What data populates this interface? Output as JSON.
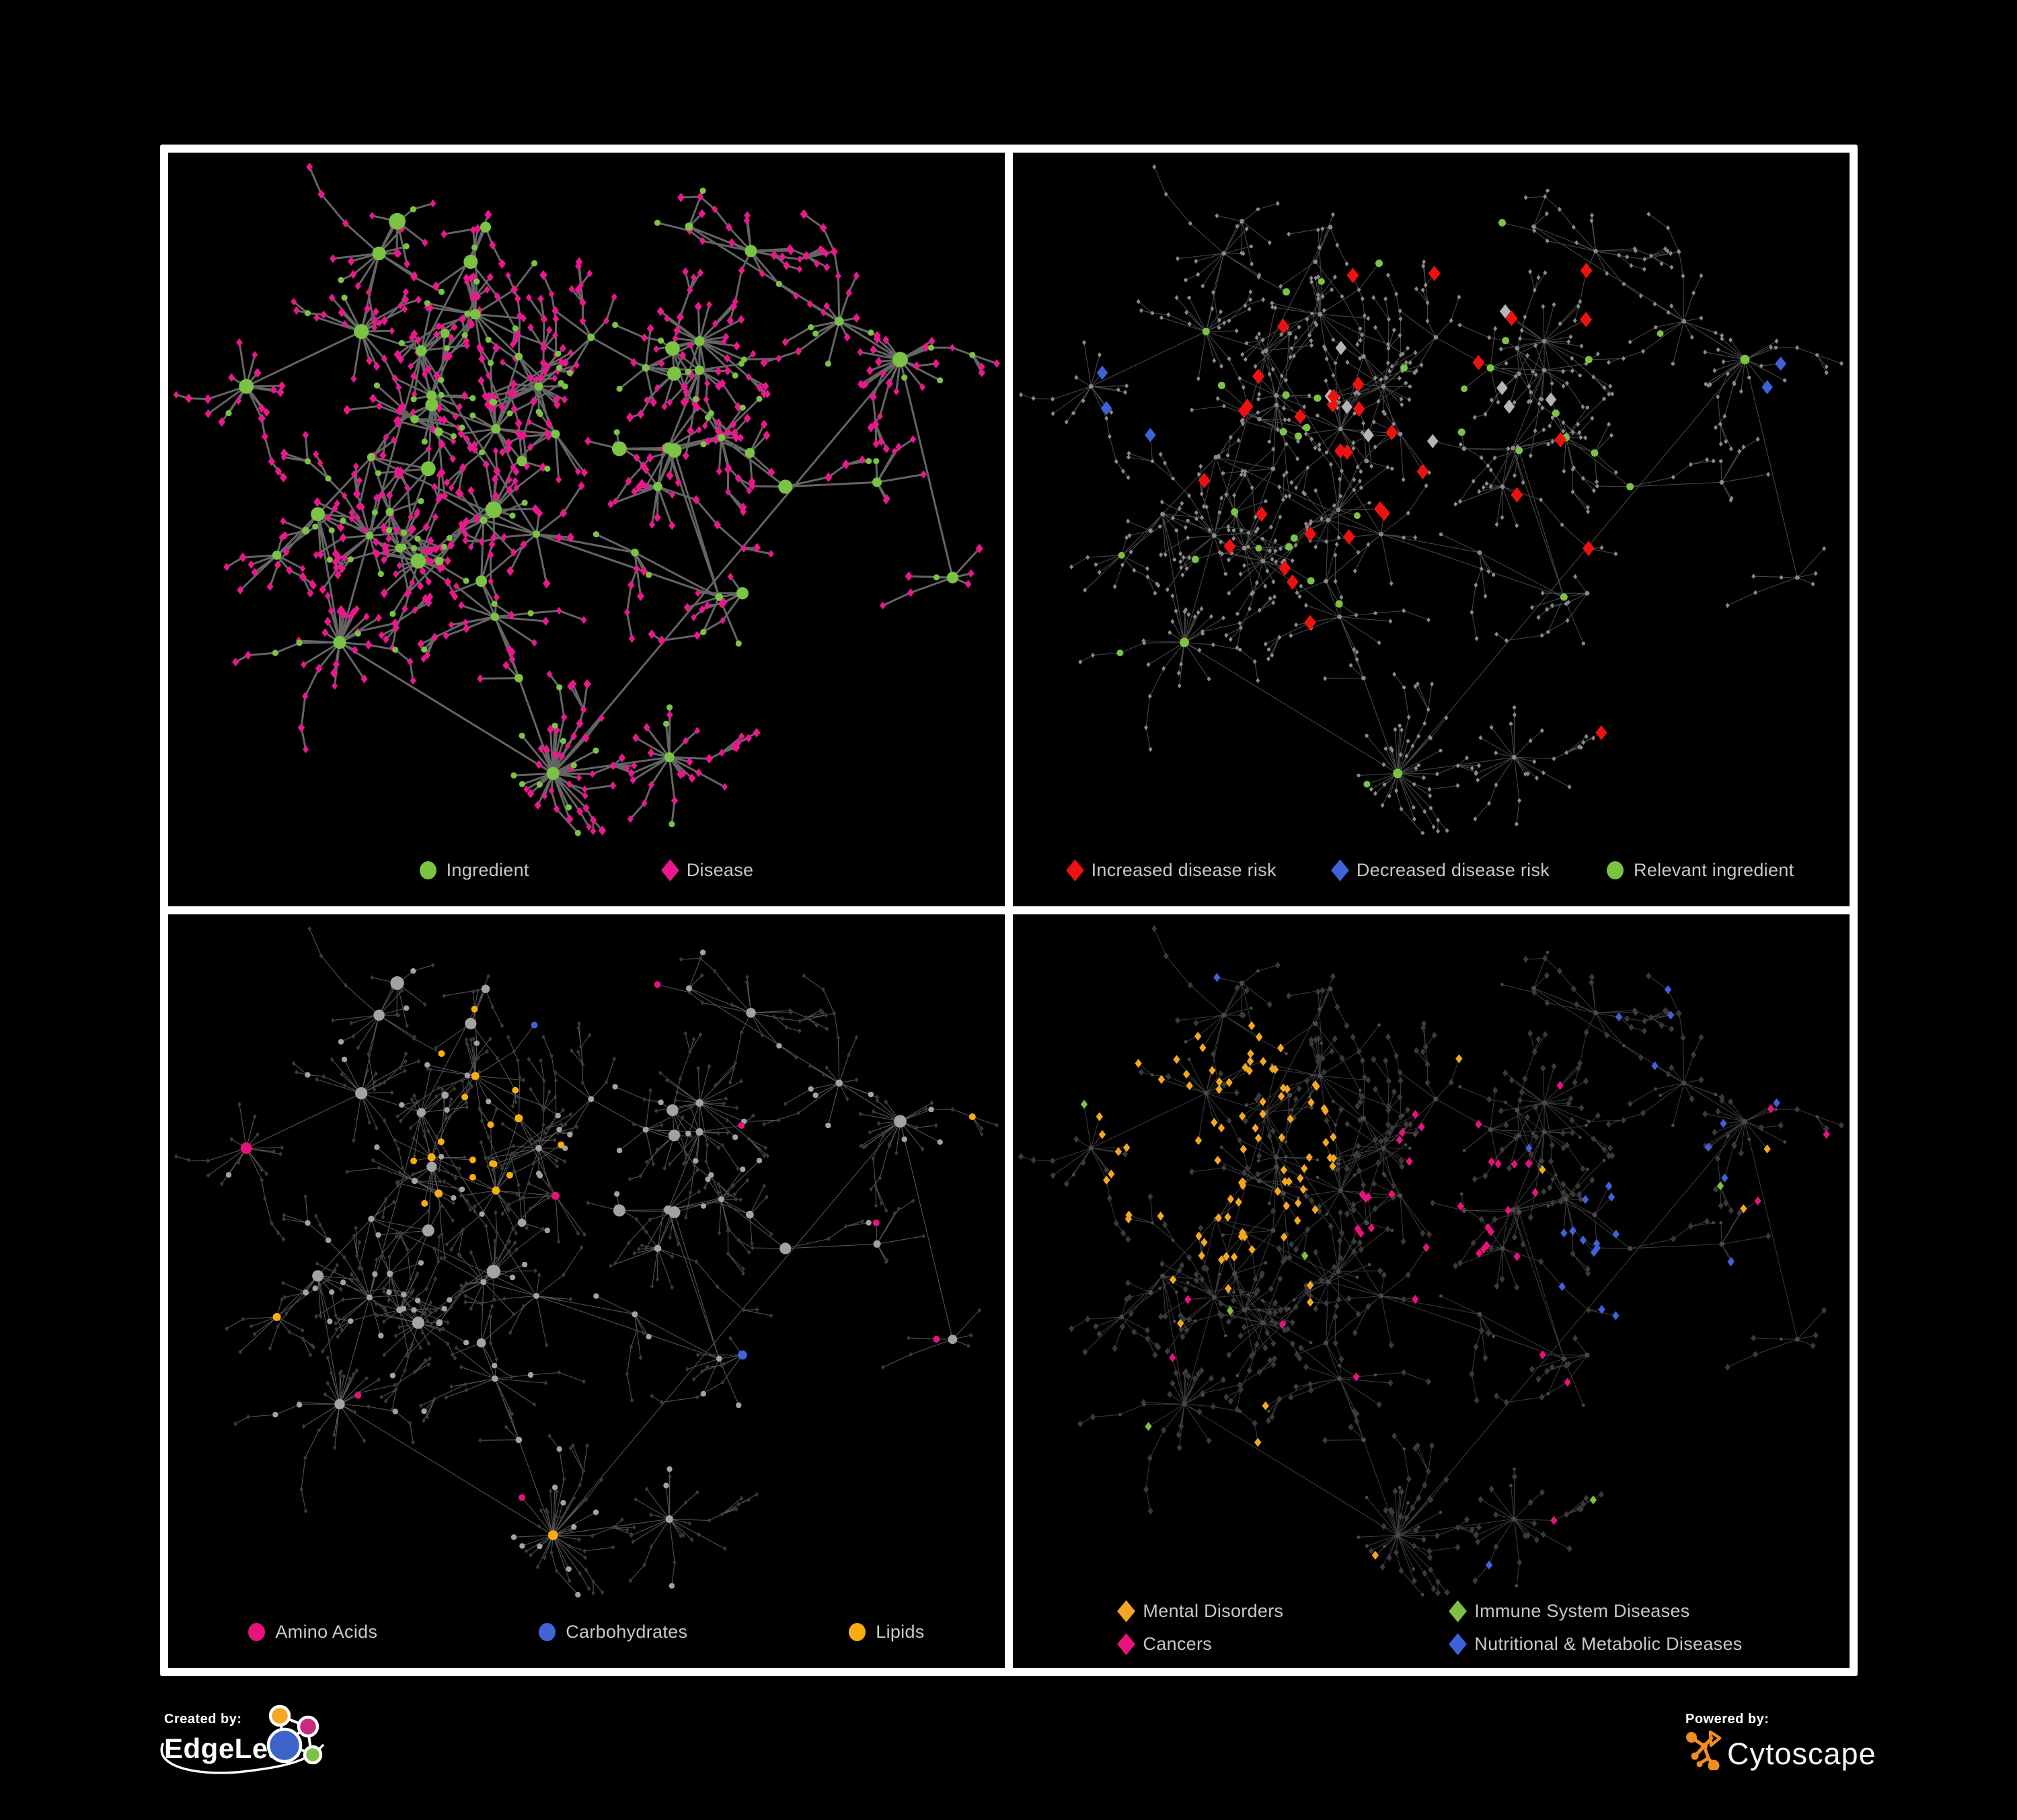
{
  "panels": [
    {
      "id": "ingredient-disease",
      "legend": [
        {
          "label": "Ingredient",
          "shape": "circle",
          "color": "#7CC344"
        },
        {
          "label": "Disease",
          "shape": "diamond",
          "color": "#E9188C"
        }
      ],
      "colors": {
        "edge": "#6A6A6A",
        "edge_width": 3,
        "edge_opacity": 0.95,
        "green": "#7CC344",
        "pink": "#E9188C"
      }
    },
    {
      "id": "disease-risk",
      "legend": [
        {
          "label": "Increased disease risk",
          "shape": "diamond",
          "color": "#ED1111"
        },
        {
          "label": "Decreased disease risk",
          "shape": "diamond",
          "color": "#3E62D9"
        },
        {
          "label": "Relevant ingredient",
          "shape": "circle",
          "color": "#7CC344"
        }
      ],
      "colors": {
        "edge": "#4E4E4E",
        "edge_width": 1.1,
        "edge_opacity": 0.9,
        "dot": "#8A8A8A",
        "red": "#ED1111",
        "blue": "#3E62D9",
        "silver": "#B5B5B5",
        "green": "#7CC344"
      }
    },
    {
      "id": "nutrient-classes",
      "legend": [
        {
          "label": "Amino Acids",
          "shape": "circle",
          "color": "#E8127D"
        },
        {
          "label": "Carbohydrates",
          "shape": "circle",
          "color": "#4064D9"
        },
        {
          "label": "Lipids",
          "shape": "circle",
          "color": "#F8AE0F"
        }
      ],
      "colors": {
        "edge": "#8C8C8C",
        "edge_width": 1.1,
        "edge_opacity": 0.6,
        "gray": "#A3A3A3",
        "dark": "#3A3A3A",
        "pink": "#E8127D",
        "blue": "#4064D9",
        "orange": "#F8AE0F"
      }
    },
    {
      "id": "disease-classes",
      "legendColumns": 2,
      "legend": [
        {
          "label": "Mental Disorders",
          "shape": "diamond",
          "color": "#F5A623"
        },
        {
          "label": "Immune System Diseases",
          "shape": "diamond",
          "color": "#7DC242"
        },
        {
          "label": "Cancers",
          "shape": "diamond",
          "color": "#E8127D"
        },
        {
          "label": "Nutritional & Metabolic Diseases",
          "shape": "diamond",
          "color": "#3E62D9"
        }
      ],
      "colors": {
        "edge": "#6F6F6F",
        "edge_width": 1,
        "edge_opacity": 0.55,
        "dot": "#4A4A4A",
        "dark": "#3A3A3A",
        "orange": "#F5A623",
        "green": "#7DC242",
        "pink": "#E8127D",
        "blue": "#3E62D9"
      }
    }
  ],
  "footer": {
    "created_by_label": "Created by:",
    "edgeleap_text": "EdgeLeap",
    "powered_by_label": "Powered by:",
    "cytoscape_text": "Cytoscape",
    "edgeleap_colors": {
      "orange": "#F5A623",
      "pink": "#C72B7E",
      "blue": "#3D63C9",
      "green": "#7DC242"
    },
    "cytoscape_orange": "#F08C21"
  }
}
